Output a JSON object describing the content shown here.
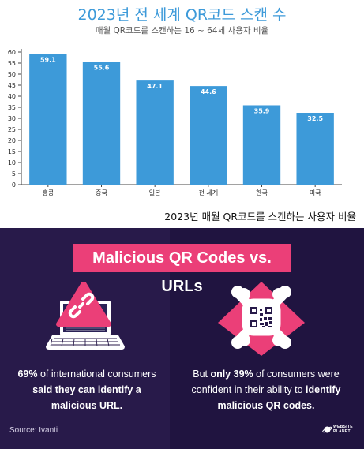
{
  "chart_data": {
    "type": "bar",
    "title": "2023년 전 세계 QR코드 스캔 수",
    "subtitle": "매월 QR코드를 스캔하는 16 ~ 64세 사용자 비율",
    "categories": [
      "홍콩",
      "중국",
      "일본",
      "전 세계",
      "한국",
      "미국"
    ],
    "values": [
      59.1,
      55.6,
      47.1,
      44.6,
      35.9,
      32.5
    ],
    "data_labels": [
      "59.1",
      "55.6",
      "47.1",
      "44.6",
      "35.9",
      "32.5"
    ],
    "ylim": [
      0,
      60
    ],
    "yticks": [
      0,
      5,
      10,
      15,
      20,
      25,
      30,
      35,
      40,
      45,
      50,
      55,
      60
    ],
    "xlabel": "",
    "ylabel": "",
    "grid": false,
    "legend": "none",
    "caption": "2023년 매월 QR코드를 스캔하는 사용자 비율",
    "bar_color": "#3d9ad9"
  },
  "infographic": {
    "banner": "Malicious QR Codes vs. URLs",
    "left_stat": {
      "bold_1": "69%",
      "text_1": " of international consumers ",
      "bold_2": "said they can identify a malicious URL.",
      "icon": "laptop-warning-icon"
    },
    "right_stat": {
      "text_1": "But ",
      "bold_1": "only 39%",
      "text_2": " of consumers were confident in their ability to ",
      "bold_2": "identify malicious QR codes.",
      "icon": "qr-skull-icon"
    },
    "source": "Source: Ivanti",
    "logo_line1": "WEBSITE",
    "logo_line2": "PLANET",
    "colors": {
      "background": "#281a4a",
      "accent": "#eb3f78",
      "text": "#ffffff"
    }
  }
}
